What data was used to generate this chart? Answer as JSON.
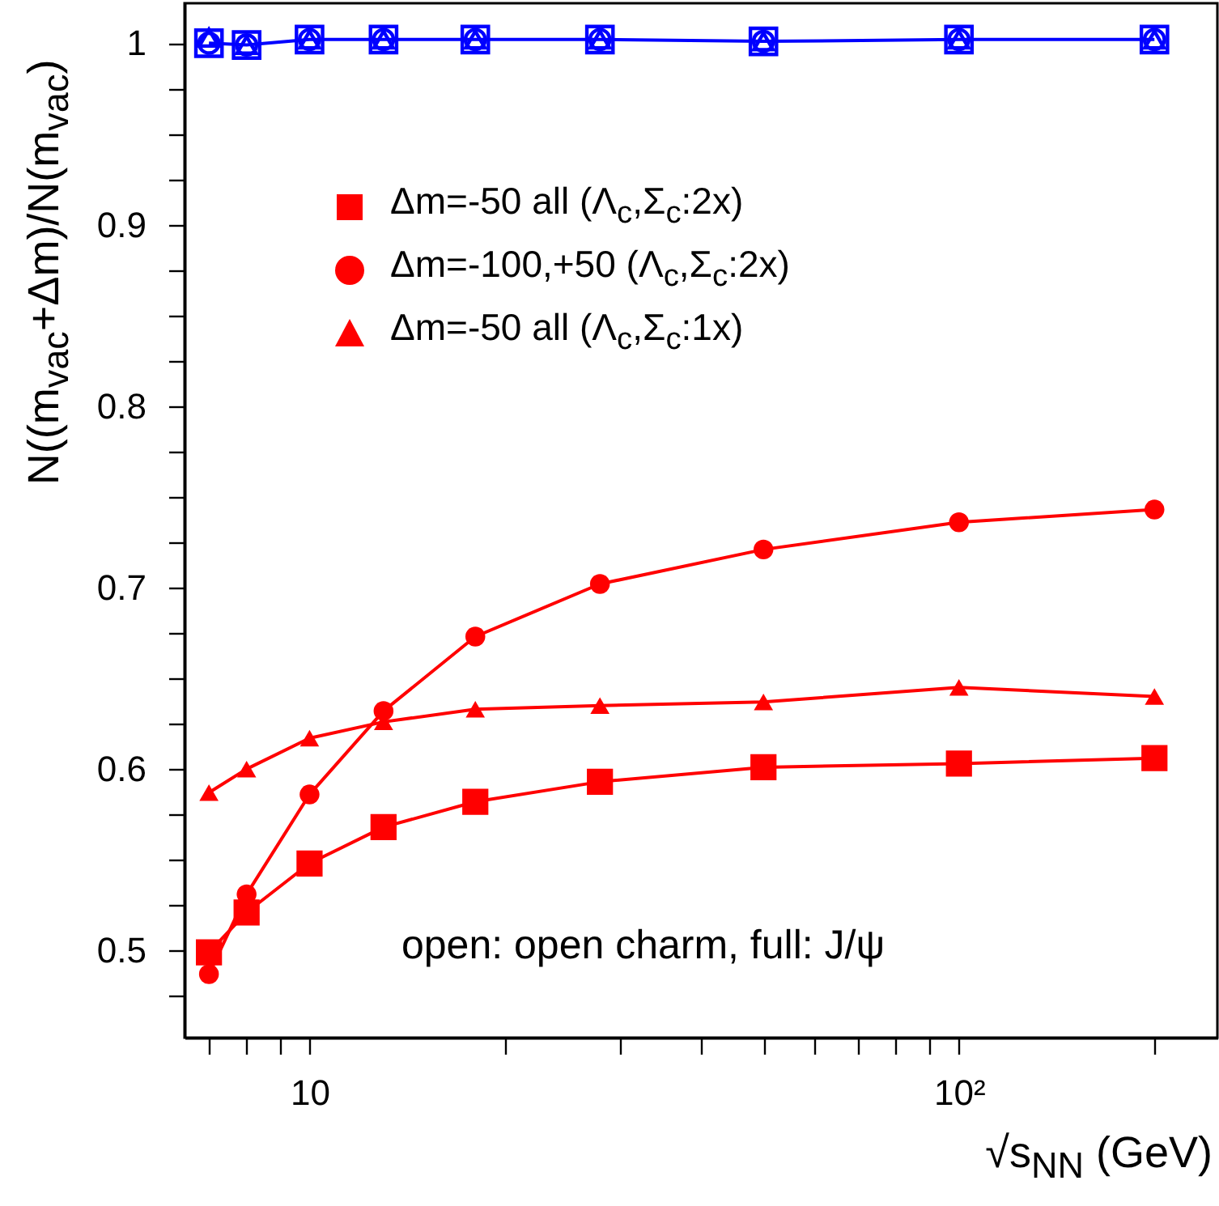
{
  "chart_data": {
    "type": "line",
    "xlabel": "√s$_{NN}$ (GeV)",
    "ylabel": "N((m$_{vac}$+Δm)/N(m$_{vac}$)",
    "annotations": [
      "open: open charm, full: J/ψ"
    ],
    "x": [
      7,
      8,
      10,
      13,
      18,
      28,
      50,
      100,
      200
    ],
    "series": [
      {
        "name": "Δm=-50 all (Λ$_{c}$,Σ$_{c}$:2x)",
        "color": "#ff0000",
        "marker": "square",
        "values": [
          0.499,
          0.521,
          0.548,
          0.568,
          0.582,
          0.593,
          0.601,
          0.603,
          0.606
        ]
      },
      {
        "name": "Δm=-100,+50 (Λ$_{c}$,Σ$_{c}$:2x)",
        "color": "#ff0000",
        "marker": "circle",
        "values": [
          0.487,
          0.531,
          0.586,
          0.632,
          0.673,
          0.702,
          0.721,
          0.736,
          0.743
        ]
      },
      {
        "name": "Δm=-50 all (Λ$_{c}$,Σ$_{c}$:1x)",
        "color": "#ff0000",
        "marker": "triangle",
        "values": [
          0.587,
          0.6,
          0.617,
          0.626,
          0.633,
          0.635,
          0.637,
          0.645,
          0.64
        ]
      },
      {
        "color": "#0000ff",
        "marker": "square",
        "values": [
          1.0,
          0.999,
          1.002,
          1.002,
          1.002,
          1.002,
          1.001,
          1.002,
          1.002
        ]
      },
      {
        "type": "scatter",
        "color": "#0000ff",
        "marker": "circle",
        "values": [
          1.0,
          0.999,
          1.002,
          1.002,
          1.002,
          1.002,
          1.001,
          1.002,
          1.002
        ]
      },
      {
        "type": "scatter",
        "color": "#0000ff",
        "marker": "triangle",
        "values": [
          1.003,
          0.999,
          1.002,
          1.002,
          1.002,
          1.002,
          1.001,
          1.002,
          1.002
        ]
      }
    ],
    "log": "x",
    "xlim": [
      6.42,
      250
    ],
    "ylim": [
      0.452,
      1.022
    ],
    "xticks": [
      {
        "value": 7,
        "label": null
      },
      {
        "value": 8,
        "label": null
      },
      {
        "value": 9,
        "label": null
      },
      10,
      {
        "value": 20,
        "label": null
      },
      {
        "value": 30,
        "label": null
      },
      {
        "value": 40,
        "label": null
      },
      {
        "value": 50,
        "label": null
      },
      {
        "value": 60,
        "label": null
      },
      {
        "value": 70,
        "label": null
      },
      {
        "value": 80,
        "label": null
      },
      {
        "value": 90,
        "label": null
      },
      {
        "value": 100,
        "label": "10²"
      },
      {
        "value": 200,
        "label": null
      }
    ],
    "yticks": [
      {
        "value": 0.475,
        "label": null
      },
      0.5,
      {
        "value": 0.525,
        "label": null
      },
      {
        "value": 0.55,
        "label": null
      },
      {
        "value": 0.575,
        "label": null
      },
      0.6,
      {
        "value": 0.625,
        "label": null
      },
      {
        "value": 0.65,
        "label": null
      },
      {
        "value": 0.675,
        "label": null
      },
      0.7,
      {
        "value": 0.725,
        "label": null
      },
      {
        "value": 0.75,
        "label": null
      },
      {
        "value": 0.775,
        "label": null
      },
      0.8,
      {
        "value": 0.825,
        "label": null
      },
      {
        "value": 0.85,
        "label": null
      },
      {
        "value": 0.875,
        "label": null
      },
      0.9,
      {
        "value": 0.925,
        "label": null
      },
      {
        "value": 0.95,
        "label": null
      },
      {
        "value": 0.975,
        "label": null
      },
      1
    ],
    "grid": false,
    "legend": "top left",
    "line_style": "solid"
  }
}
